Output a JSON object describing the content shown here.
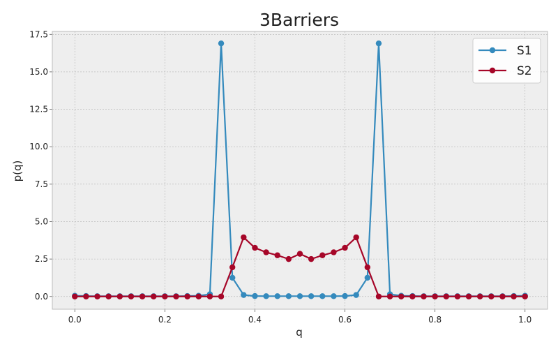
{
  "chart_data": {
    "type": "line",
    "title": "3Barriers",
    "xlabel": "q",
    "ylabel": "p(q)",
    "xlim": [
      -0.05,
      1.05
    ],
    "ylim": [
      -0.85,
      17.7
    ],
    "xticks": [
      0.0,
      0.2,
      0.4,
      0.6,
      0.8,
      1.0
    ],
    "xtick_labels": [
      "0.0",
      "0.2",
      "0.4",
      "0.6",
      "0.8",
      "1.0"
    ],
    "yticks": [
      0.0,
      2.5,
      5.0,
      7.5,
      10.0,
      12.5,
      15.0,
      17.5
    ],
    "ytick_labels": [
      "0.0",
      "2.5",
      "5.0",
      "7.5",
      "10.0",
      "12.5",
      "15.0",
      "17.5"
    ],
    "grid": true,
    "legend_position": "top-right",
    "x": [
      0.0,
      0.025,
      0.05,
      0.075,
      0.1,
      0.125,
      0.15,
      0.175,
      0.2,
      0.225,
      0.25,
      0.275,
      0.3,
      0.325,
      0.35,
      0.375,
      0.4,
      0.425,
      0.45,
      0.475,
      0.5,
      0.525,
      0.55,
      0.575,
      0.6,
      0.625,
      0.65,
      0.675,
      0.7,
      0.725,
      0.75,
      0.775,
      0.8,
      0.825,
      0.85,
      0.875,
      0.9,
      0.925,
      0.95,
      0.975,
      1.0
    ],
    "series": [
      {
        "name": "S1",
        "color": "#348abd",
        "values": [
          0.05,
          0.03,
          0.02,
          0.02,
          0.02,
          0.02,
          0.02,
          0.02,
          0.02,
          0.02,
          0.03,
          0.05,
          0.15,
          16.9,
          1.25,
          0.1,
          0.03,
          0.02,
          0.02,
          0.02,
          0.02,
          0.02,
          0.02,
          0.02,
          0.03,
          0.1,
          1.25,
          16.9,
          0.15,
          0.05,
          0.03,
          0.02,
          0.02,
          0.02,
          0.02,
          0.02,
          0.02,
          0.02,
          0.02,
          0.03,
          0.05
        ]
      },
      {
        "name": "S2",
        "color": "#a60628",
        "values": [
          0.0,
          0.0,
          0.0,
          0.0,
          0.0,
          0.0,
          0.0,
          0.0,
          0.0,
          0.0,
          0.0,
          0.0,
          0.0,
          0.0,
          1.95,
          3.95,
          3.25,
          2.95,
          2.75,
          2.5,
          2.85,
          2.5,
          2.75,
          2.95,
          3.25,
          3.95,
          1.95,
          0.0,
          0.0,
          0.0,
          0.0,
          0.0,
          0.0,
          0.0,
          0.0,
          0.0,
          0.0,
          0.0,
          0.0,
          0.0,
          0.0
        ]
      }
    ]
  },
  "style": {
    "plot_background": "#eeeeee",
    "grid_color": "#b2b2b2",
    "axis_color": "#bcbcbc",
    "legend_background": "#ffffff",
    "legend_border": "#cccccc"
  }
}
